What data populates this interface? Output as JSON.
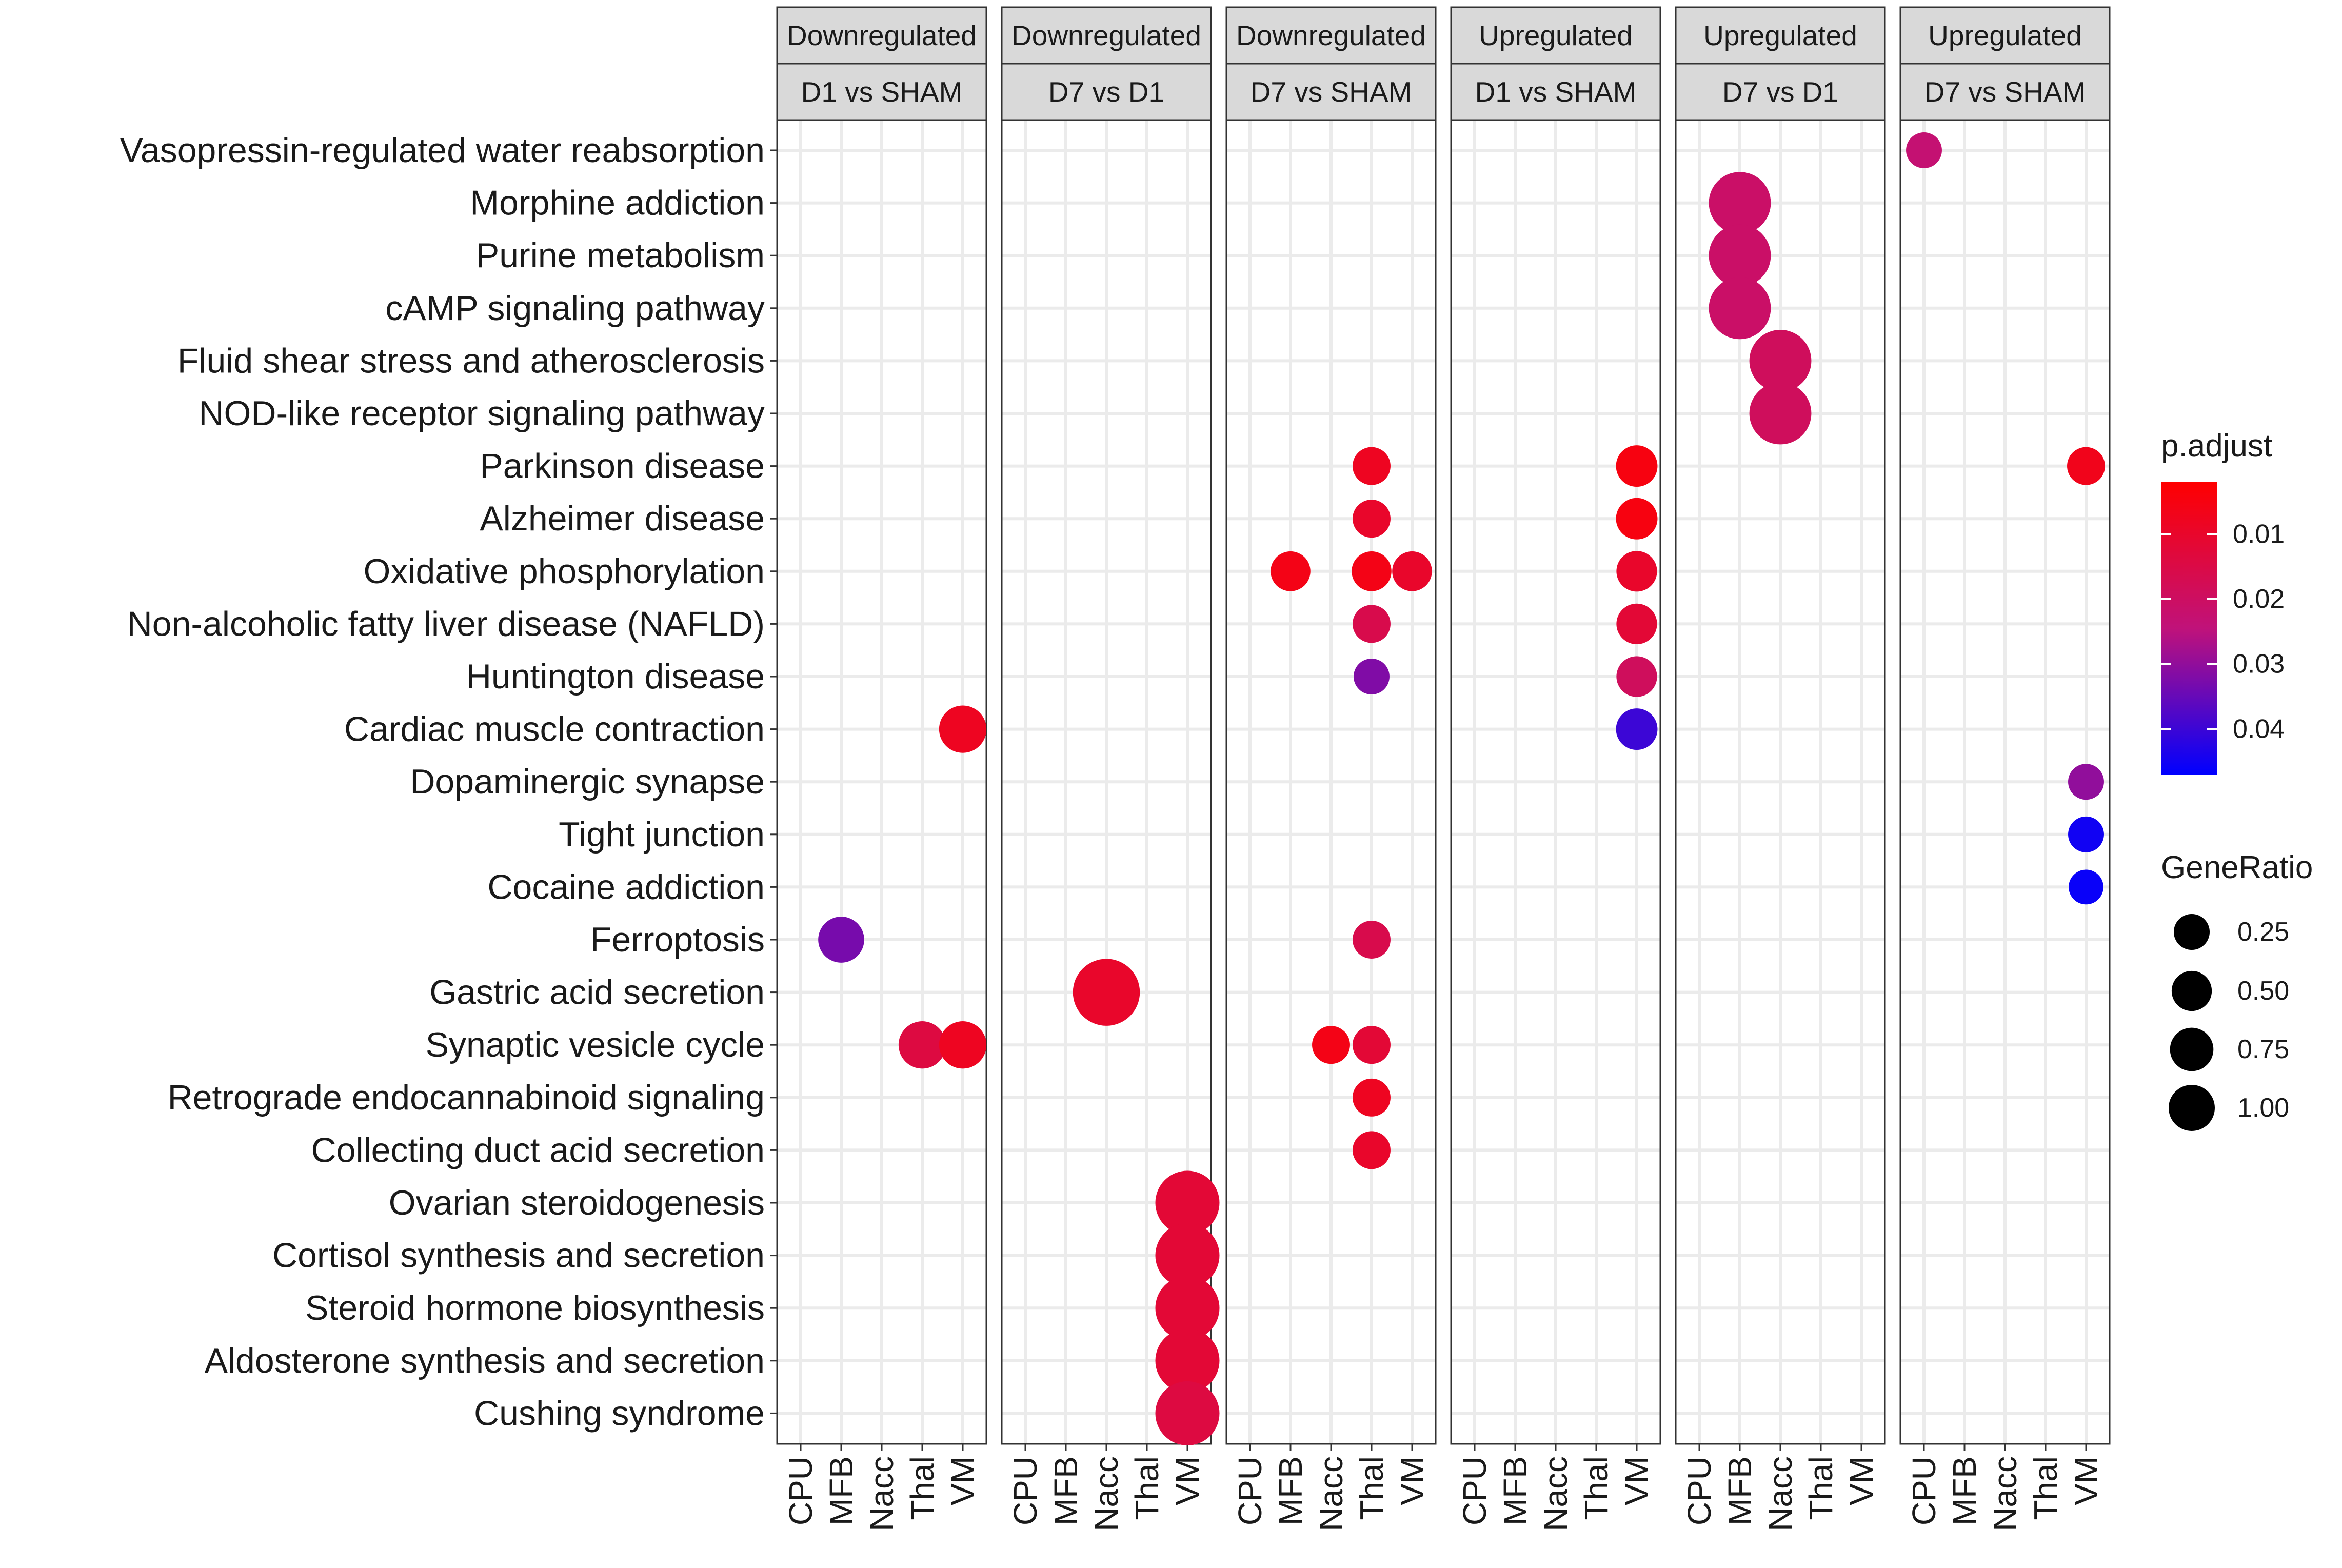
{
  "chart_data": {
    "type": "scatter",
    "subtype": "faceted dot plot (KEGG enrichment)",
    "facets": [
      {
        "direction": "Downregulated",
        "comparison": "D1 vs SHAM"
      },
      {
        "direction": "Downregulated",
        "comparison": "D7 vs D1"
      },
      {
        "direction": "Downregulated",
        "comparison": "D7 vs SHAM"
      },
      {
        "direction": "Upregulated",
        "comparison": "D1 vs SHAM"
      },
      {
        "direction": "Upregulated",
        "comparison": "D7 vs D1"
      },
      {
        "direction": "Upregulated",
        "comparison": "D7 vs SHAM"
      }
    ],
    "x_categories": [
      "CPU",
      "MFB",
      "Nacc",
      "Thal",
      "VM"
    ],
    "y_categories": [
      "Vasopressin-regulated water reabsorption",
      "Morphine addiction",
      "Purine metabolism",
      "cAMP signaling pathway",
      "Fluid shear stress and atherosclerosis",
      "NOD-like receptor signaling pathway",
      "Parkinson disease",
      "Alzheimer disease",
      "Oxidative phosphorylation",
      "Non-alcoholic fatty liver disease (NAFLD)",
      "Huntington disease",
      "Cardiac muscle contraction",
      "Dopaminergic synapse",
      "Tight junction",
      "Cocaine addiction",
      "Ferroptosis",
      "Gastric acid secretion",
      "Synaptic vesicle cycle",
      "Retrograde endocannabinoid signaling",
      "Collecting duct acid secretion",
      "Ovarian steroidogenesis",
      "Cortisol synthesis and secretion",
      "Steroid hormone biosynthesis",
      "Aldosterone synthesis and secretion",
      "Cushing syndrome"
    ],
    "points": [
      {
        "facet": 0,
        "x": "MFB",
        "y": "Ferroptosis",
        "gene_ratio": 0.2,
        "p_adjust": 0.033
      },
      {
        "facet": 0,
        "x": "VM",
        "y": "Cardiac muscle contraction",
        "gene_ratio": 0.22,
        "p_adjust": 0.008
      },
      {
        "facet": 0,
        "x": "Thal",
        "y": "Synaptic vesicle cycle",
        "gene_ratio": 0.22,
        "p_adjust": 0.014
      },
      {
        "facet": 0,
        "x": "VM",
        "y": "Synaptic vesicle cycle",
        "gene_ratio": 0.22,
        "p_adjust": 0.008
      },
      {
        "facet": 1,
        "x": "Nacc",
        "y": "Gastric acid secretion",
        "gene_ratio": 0.62,
        "p_adjust": 0.01
      },
      {
        "facet": 1,
        "x": "VM",
        "y": "Ovarian steroidogenesis",
        "gene_ratio": 0.55,
        "p_adjust": 0.012
      },
      {
        "facet": 1,
        "x": "VM",
        "y": "Cortisol synthesis and secretion",
        "gene_ratio": 0.55,
        "p_adjust": 0.012
      },
      {
        "facet": 1,
        "x": "VM",
        "y": "Steroid hormone biosynthesis",
        "gene_ratio": 0.55,
        "p_adjust": 0.012
      },
      {
        "facet": 1,
        "x": "VM",
        "y": "Aldosterone synthesis and secretion",
        "gene_ratio": 0.55,
        "p_adjust": 0.012
      },
      {
        "facet": 1,
        "x": "VM",
        "y": "Cushing syndrome",
        "gene_ratio": 0.55,
        "p_adjust": 0.014
      },
      {
        "facet": 2,
        "x": "Thal",
        "y": "Parkinson disease",
        "gene_ratio": 0.1,
        "p_adjust": 0.008
      },
      {
        "facet": 2,
        "x": "Thal",
        "y": "Alzheimer disease",
        "gene_ratio": 0.1,
        "p_adjust": 0.01
      },
      {
        "facet": 2,
        "x": "MFB",
        "y": "Oxidative phosphorylation",
        "gene_ratio": 0.12,
        "p_adjust": 0.006
      },
      {
        "facet": 2,
        "x": "Thal",
        "y": "Oxidative phosphorylation",
        "gene_ratio": 0.12,
        "p_adjust": 0.006
      },
      {
        "facet": 2,
        "x": "VM",
        "y": "Oxidative phosphorylation",
        "gene_ratio": 0.12,
        "p_adjust": 0.01
      },
      {
        "facet": 2,
        "x": "Thal",
        "y": "Non-alcoholic fatty liver disease (NAFLD)",
        "gene_ratio": 0.1,
        "p_adjust": 0.016
      },
      {
        "facet": 2,
        "x": "Thal",
        "y": "Huntington disease",
        "gene_ratio": 0.08,
        "p_adjust": 0.032
      },
      {
        "facet": 2,
        "x": "Thal",
        "y": "Ferroptosis",
        "gene_ratio": 0.1,
        "p_adjust": 0.016
      },
      {
        "facet": 2,
        "x": "Nacc",
        "y": "Synaptic vesicle cycle",
        "gene_ratio": 0.1,
        "p_adjust": 0.006
      },
      {
        "facet": 2,
        "x": "Thal",
        "y": "Synaptic vesicle cycle",
        "gene_ratio": 0.1,
        "p_adjust": 0.012
      },
      {
        "facet": 2,
        "x": "Thal",
        "y": "Retrograde endocannabinoid signaling",
        "gene_ratio": 0.1,
        "p_adjust": 0.008
      },
      {
        "facet": 2,
        "x": "Thal",
        "y": "Collecting duct acid secretion",
        "gene_ratio": 0.1,
        "p_adjust": 0.01
      },
      {
        "facet": 3,
        "x": "VM",
        "y": "Parkinson disease",
        "gene_ratio": 0.14,
        "p_adjust": 0.005
      },
      {
        "facet": 3,
        "x": "VM",
        "y": "Alzheimer disease",
        "gene_ratio": 0.14,
        "p_adjust": 0.005
      },
      {
        "facet": 3,
        "x": "VM",
        "y": "Oxidative phosphorylation",
        "gene_ratio": 0.13,
        "p_adjust": 0.01
      },
      {
        "facet": 3,
        "x": "VM",
        "y": "Non-alcoholic fatty liver disease (NAFLD)",
        "gene_ratio": 0.13,
        "p_adjust": 0.012
      },
      {
        "facet": 3,
        "x": "VM",
        "y": "Huntington disease",
        "gene_ratio": 0.13,
        "p_adjust": 0.019
      },
      {
        "facet": 3,
        "x": "VM",
        "y": "Cardiac muscle contraction",
        "gene_ratio": 0.14,
        "p_adjust": 0.04
      },
      {
        "facet": 4,
        "x": "MFB",
        "y": "Morphine addiction",
        "gene_ratio": 0.5,
        "p_adjust": 0.021
      },
      {
        "facet": 4,
        "x": "MFB",
        "y": "Purine metabolism",
        "gene_ratio": 0.5,
        "p_adjust": 0.021
      },
      {
        "facet": 4,
        "x": "MFB",
        "y": "cAMP signaling pathway",
        "gene_ratio": 0.5,
        "p_adjust": 0.021
      },
      {
        "facet": 4,
        "x": "Nacc",
        "y": "Fluid shear stress and atherosclerosis",
        "gene_ratio": 0.5,
        "p_adjust": 0.019
      },
      {
        "facet": 4,
        "x": "Nacc",
        "y": "NOD-like receptor signaling pathway",
        "gene_ratio": 0.5,
        "p_adjust": 0.019
      },
      {
        "facet": 5,
        "x": "CPU",
        "y": "Vasopressin-regulated water reabsorption",
        "gene_ratio": 0.08,
        "p_adjust": 0.023
      },
      {
        "facet": 5,
        "x": "VM",
        "y": "Parkinson disease",
        "gene_ratio": 0.1,
        "p_adjust": 0.007
      },
      {
        "facet": 5,
        "x": "VM",
        "y": "Dopaminergic synapse",
        "gene_ratio": 0.08,
        "p_adjust": 0.03
      },
      {
        "facet": 5,
        "x": "VM",
        "y": "Tight junction",
        "gene_ratio": 0.08,
        "p_adjust": 0.045
      },
      {
        "facet": 5,
        "x": "VM",
        "y": "Cocaine addiction",
        "gene_ratio": 0.07,
        "p_adjust": 0.046
      }
    ],
    "color_legend": {
      "title": "p.adjust",
      "ticks": [
        0.01,
        0.02,
        0.03,
        0.04
      ],
      "tick_labels": [
        "0.01",
        "0.02",
        "0.03",
        "0.04"
      ],
      "range": [
        0.002,
        0.047
      ],
      "low_color": "#ff0000",
      "high_color": "#0000ff"
    },
    "size_legend": {
      "title": "GeneRatio",
      "values": [
        0.25,
        0.5,
        0.75,
        1.0
      ],
      "labels": [
        "0.25",
        "0.50",
        "0.75",
        "1.00"
      ]
    }
  }
}
